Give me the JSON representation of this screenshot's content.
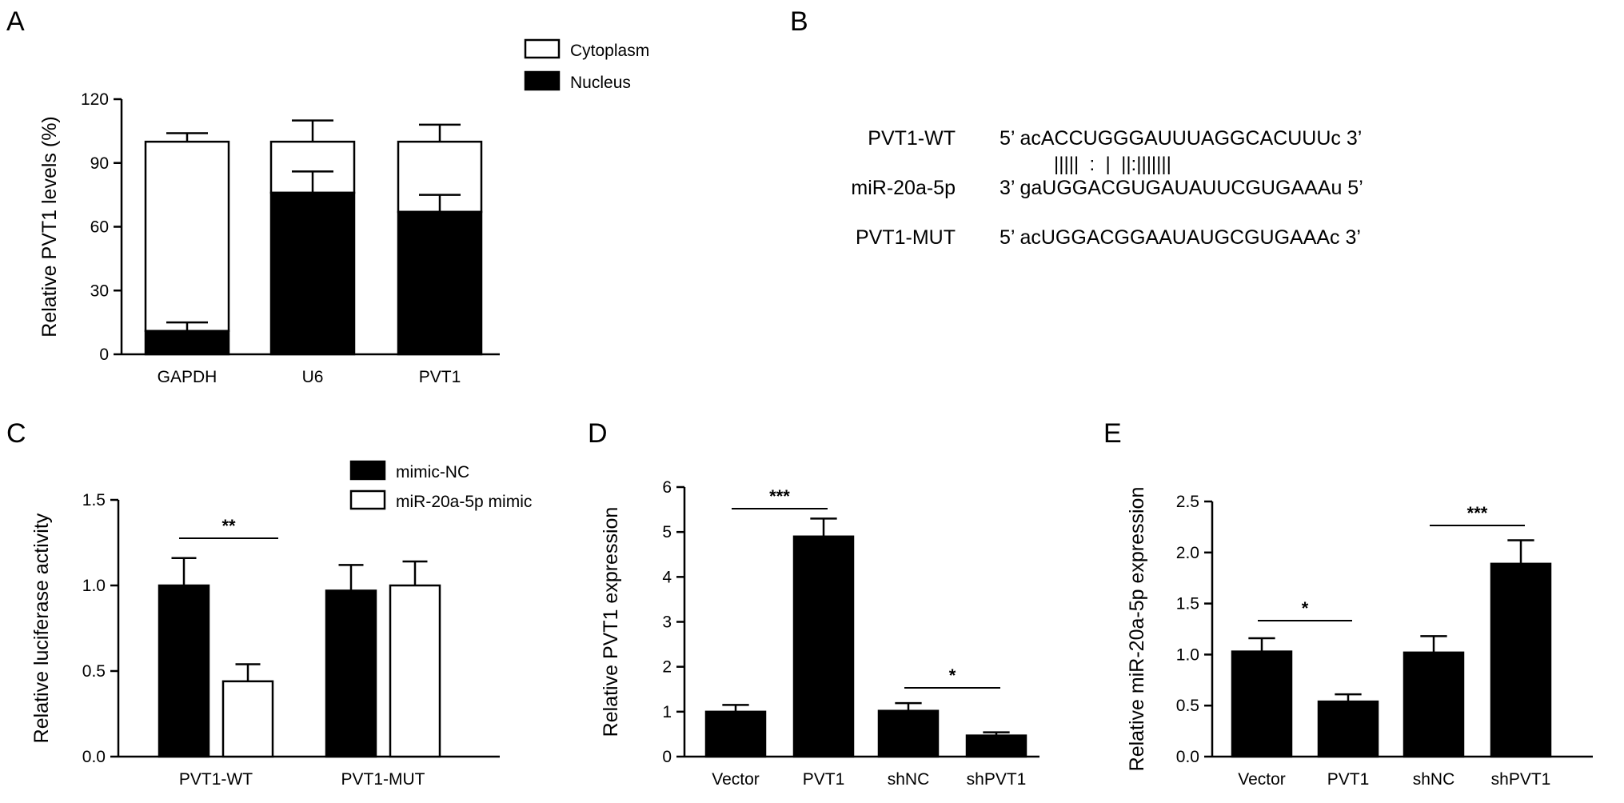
{
  "chart_data": [
    {
      "panel": "A",
      "type": "bar",
      "stacked": true,
      "categories": [
        "GAPDH",
        "U6",
        "PVT1"
      ],
      "series": [
        {
          "name": "Nucleus",
          "color": "#000000",
          "values": [
            11,
            76,
            67
          ],
          "errors": [
            4,
            10,
            8
          ]
        },
        {
          "name": "Cytoplasm",
          "color": "#ffffff",
          "values": [
            89,
            24,
            33
          ],
          "errors": [
            4,
            10,
            8
          ]
        }
      ],
      "ylabel": "Relative PVT1 levels (%)",
      "ylim": [
        0,
        120
      ],
      "yticks": [
        0,
        30,
        60,
        90,
        120
      ],
      "legend": [
        "Cytoplasm",
        "Nucleus"
      ],
      "legend_position": "top-right"
    },
    {
      "panel": "B",
      "type": "table",
      "rows": [
        {
          "label": "PVT1-WT",
          "sequence": "5’ acACCUGGGAUUUAGGCACUUUc 3’"
        },
        {
          "label": "",
          "sequence": "|||||  :  |  ||:|||||||"
        },
        {
          "label": "miR-20a-5p",
          "sequence": "3’ gaUGGACGUGAUAUUCGUGAAAu 5’"
        },
        {
          "label": "PVT1-MUT",
          "sequence": "5’ acUGGACGGAAUAUGCGUGAAAc 3’"
        }
      ]
    },
    {
      "panel": "C",
      "type": "bar",
      "categories": [
        "PVT1-WT",
        "PVT1-MUT"
      ],
      "series": [
        {
          "name": "mimic-NC",
          "color": "#000000",
          "values": [
            1.0,
            0.97
          ],
          "errors": [
            0.16,
            0.15
          ]
        },
        {
          "name": "miR-20a-5p mimic",
          "color": "#ffffff",
          "values": [
            0.44,
            1.0
          ],
          "errors": [
            0.1,
            0.14
          ]
        }
      ],
      "ylabel": "Relative luciferase activity",
      "ylim": [
        0,
        1.5
      ],
      "yticks": [
        "0.0",
        "0.5",
        "1.0",
        "1.5"
      ],
      "legend_position": "top-right",
      "significance": [
        {
          "label": "**",
          "between": [
            0,
            1
          ],
          "category": 0
        }
      ]
    },
    {
      "panel": "D",
      "type": "bar",
      "categories": [
        "Vector",
        "PVT1",
        "shNC",
        "shPVT1"
      ],
      "values": [
        1.0,
        4.9,
        1.02,
        0.47
      ],
      "errors": [
        0.15,
        0.4,
        0.17,
        0.07
      ],
      "color": "#000000",
      "ylabel": "Relative PVT1 expression",
      "ylim": [
        0,
        6
      ],
      "yticks": [
        "0",
        "1",
        "2",
        "3",
        "4",
        "5",
        "6"
      ],
      "significance": [
        {
          "label": "***",
          "between": [
            0,
            1
          ]
        },
        {
          "label": "*",
          "between": [
            2,
            3
          ]
        }
      ]
    },
    {
      "panel": "E",
      "type": "bar",
      "categories": [
        "Vector",
        "PVT1",
        "shNC",
        "shPVT1"
      ],
      "values": [
        1.03,
        0.54,
        1.02,
        1.89
      ],
      "errors": [
        0.13,
        0.07,
        0.16,
        0.23
      ],
      "color": "#000000",
      "ylabel": "Relative miR-20a-5p expression",
      "ylim": [
        0,
        2.5
      ],
      "yticks": [
        "0.0",
        "0.5",
        "1.0",
        "1.5",
        "2.0",
        "2.5"
      ],
      "significance": [
        {
          "label": "*",
          "between": [
            0,
            1
          ]
        },
        {
          "label": "***",
          "between": [
            2,
            3
          ]
        }
      ]
    }
  ]
}
